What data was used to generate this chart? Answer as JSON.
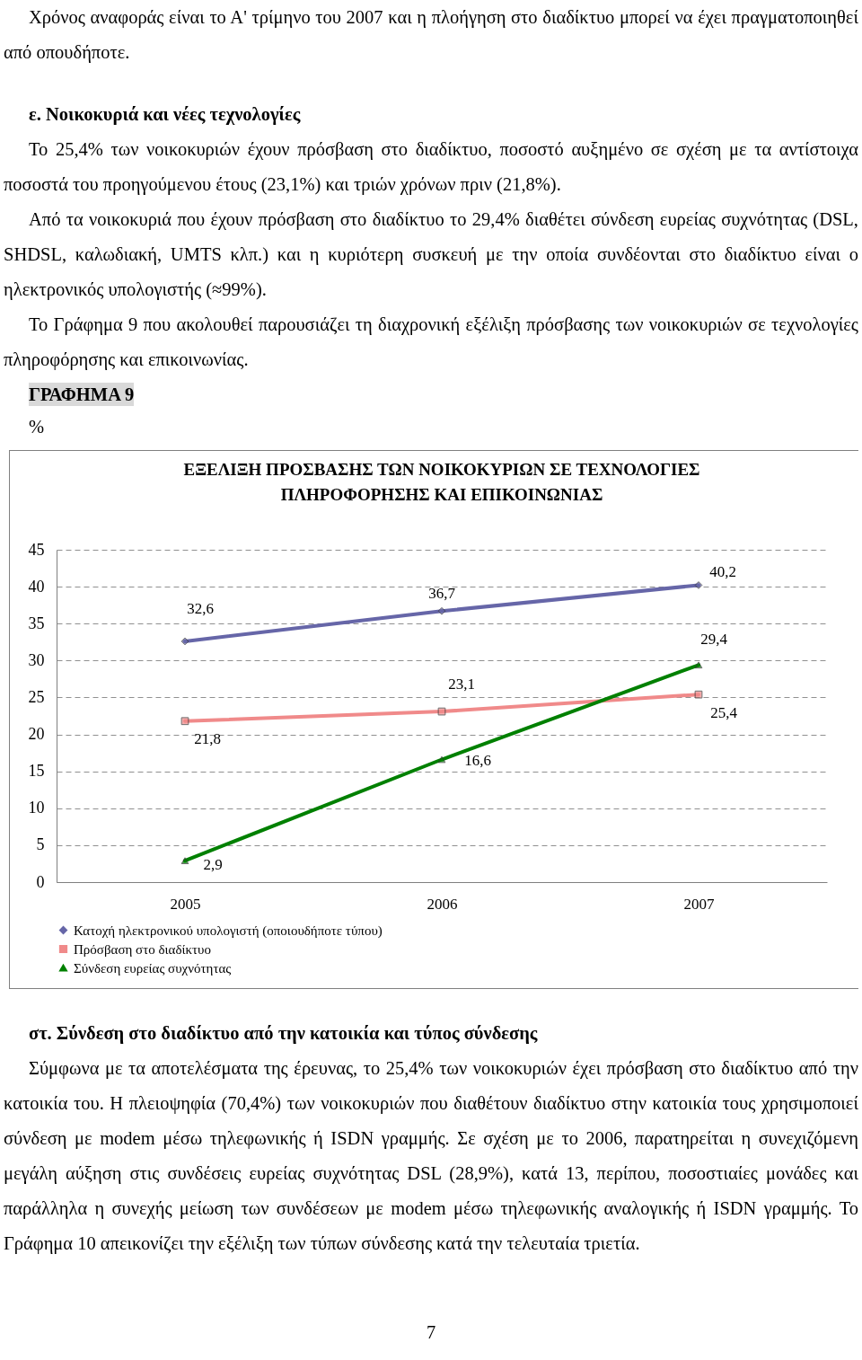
{
  "chart_data": {
    "type": "line",
    "title": "ΕΞΕΛΙΞΗ ΠΡΟΣΒΑΣΗΣ ΤΩΝ ΝΟΙΚΟΚΥΡΙΩΝ ΣΕ ΤΕΧΝΟΛΟΓΙΕΣ\nΠΛΗΡΟΦΟΡΗΣΗΣ ΚΑΙ ΕΠΙΚΟΙΝΩΝΙΑΣ",
    "categories": [
      "2005",
      "2006",
      "2007"
    ],
    "series": [
      {
        "name": "Κατοχή ηλεκτρονικού υπολογιστή (οποιουδήποτε τύπου)",
        "color": "#6666a8",
        "marker": "diamond",
        "values": [
          32.6,
          36.7,
          40.2
        ],
        "value_labels": [
          "32,6",
          "36,7",
          "40,2"
        ]
      },
      {
        "name": "Πρόσβαση στο διαδίκτυο",
        "color": "#f08a8a",
        "marker": "square",
        "values": [
          21.8,
          23.1,
          25.4
        ],
        "value_labels": [
          "21,8",
          "23,1",
          "25,4"
        ]
      },
      {
        "name": "Σύνδεση ευρείας συχνότητας",
        "color": "#008000",
        "marker": "triangle",
        "values": [
          2.9,
          16.6,
          29.4
        ],
        "value_labels": [
          "2,9",
          "16,6",
          "29,4"
        ]
      }
    ],
    "ylim": [
      0,
      45
    ],
    "yticks": [
      0,
      5,
      10,
      15,
      20,
      25,
      30,
      35,
      40,
      45
    ],
    "grid": "y",
    "legend": "bottom left",
    "annotations": [
      "Χρόνος αναφοράς είναι το Α' τρίμηνο του 2007 και η πλοήγηση στο διαδίκτυο μπορεί να έχει πραγματοποιηθεί από οπουδήποτε.",
      "ε. Νοικοκυριά και νέες τεχνολογίες",
      "Το 25,4% των νοικοκυριών έχουν πρόσβαση στο διαδίκτυο, ποσοστό αυξημένο σε σχέση με τα αντίστοιχα ποσοστά του προηγούμενου έτους (23,1%) και τριών χρόνων πριν (21,8%).",
      "Από τα νοικοκυριά που έχουν πρόσβαση στο διαδίκτυο το 29,4% διαθέτει σύνδεση ευρείας συχνότητας (DSL, SHDSL, καλωδιακή, UMTS κλπ.) και η κυριότερη συσκευή με την οποία συνδέονται στο διαδίκτυο είναι ο ηλεκτρονικός υπολογιστής (≈99%).",
      "Το Γράφημα 9 που ακολουθεί παρουσιάζει τη διαχρονική εξέλιξη πρόσβασης των νοικοκυριών σε τεχνολογίες πληροφόρησης και επικοινωνίας.",
      "ΓΡΑΦΗΜΑ 9",
      "%",
      "στ. Σύνδεση στο διαδίκτυο από την κατοικία και τύπος σύνδεσης",
      "Σύμφωνα με τα αποτελέσματα της έρευνας, το 25,4% των νοικοκυριών έχει πρόσβαση στο διαδίκτυο από την κατοικία του. Η πλειοψηφία (70,4%) των νοικοκυριών που διαθέτουν διαδίκτυο στην κατοικία τους χρησιμοποιεί σύνδεση με modem μέσω τηλεφωνικής ή ISDN γραμμής. Σε σχέση με το 2006, παρατηρείται η συνεχιζόμενη μεγάλη αύξηση στις συνδέσεις ευρείας συχνότητας DSL (28,9%), κατά 13, περίπου, ποσοστιαίες μονάδες και παράλληλα η συνεχής μείωση των συνδέσεων με modem μέσω τηλεφωνικής αναλογικής ή ISDN γραμμής. Το Γράφημα 10 απεικονίζει την εξέλιξη των τύπων σύνδεσης κατά την τελευταία τριετία.",
      "7"
    ]
  }
}
